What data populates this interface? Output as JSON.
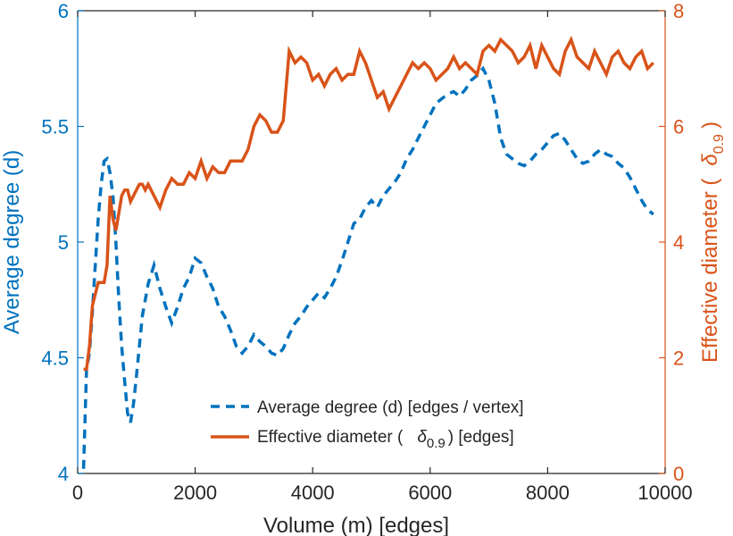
{
  "chart_data": {
    "type": "line",
    "title": "",
    "xlabel": "Volume (m) [edges]",
    "ylabel_left": "Average degree (d)",
    "ylabel_right_parts": [
      "Effective diameter (",
      "δ",
      "0.9",
      ")"
    ],
    "xlim": [
      0,
      10000
    ],
    "ylim_left": [
      4,
      6
    ],
    "ylim_right": [
      0,
      8
    ],
    "xticks": [
      0,
      2000,
      4000,
      6000,
      8000,
      10000
    ],
    "yticks_left": [
      4,
      4.5,
      5,
      5.5,
      6
    ],
    "yticks_right": [
      0,
      2,
      4,
      6,
      8
    ],
    "ytick_labels_left": [
      "4",
      "4.5",
      "5",
      "5.5",
      "6"
    ],
    "grid": false,
    "legend_position": "bottom-right",
    "colors": {
      "left_axis": "#0072BD",
      "right_axis": "#D95319",
      "axis_black": "#262626"
    },
    "series": [
      {
        "name": "Average degree (d) [edges / vertex]",
        "legend_label": "Average degree (d) [edges / vertex]",
        "axis": "left",
        "style": "dashed",
        "color": "#0072BD",
        "x": [
          100,
          150,
          200,
          250,
          300,
          350,
          400,
          450,
          500,
          550,
          600,
          650,
          700,
          750,
          800,
          850,
          900,
          950,
          1000,
          1050,
          1100,
          1150,
          1200,
          1300,
          1400,
          1500,
          1600,
          1700,
          1800,
          1900,
          2000,
          2100,
          2200,
          2300,
          2400,
          2500,
          2600,
          2700,
          2800,
          2900,
          3000,
          3100,
          3200,
          3300,
          3400,
          3500,
          3600,
          3700,
          3800,
          3900,
          4000,
          4100,
          4200,
          4300,
          4400,
          4500,
          4600,
          4700,
          4800,
          4900,
          5000,
          5100,
          5200,
          5300,
          5400,
          5500,
          5600,
          5700,
          5800,
          5900,
          6000,
          6100,
          6200,
          6300,
          6400,
          6500,
          6600,
          6700,
          6800,
          6900,
          7000,
          7100,
          7200,
          7300,
          7400,
          7500,
          7600,
          7700,
          7800,
          7900,
          8000,
          8100,
          8200,
          8300,
          8400,
          8500,
          8600,
          8700,
          8800,
          8900,
          9000,
          9100,
          9200,
          9300,
          9400,
          9500,
          9600,
          9700,
          9800
        ],
        "values": [
          4.02,
          4.45,
          4.52,
          4.7,
          4.9,
          5.1,
          5.25,
          5.35,
          5.36,
          5.3,
          5.2,
          5.0,
          4.75,
          4.55,
          4.4,
          4.26,
          4.22,
          4.3,
          4.42,
          4.55,
          4.68,
          4.75,
          4.82,
          4.9,
          4.8,
          4.72,
          4.65,
          4.72,
          4.8,
          4.85,
          4.93,
          4.91,
          4.85,
          4.8,
          4.72,
          4.68,
          4.62,
          4.55,
          4.52,
          4.55,
          4.6,
          4.57,
          4.55,
          4.52,
          4.51,
          4.54,
          4.6,
          4.65,
          4.68,
          4.72,
          4.75,
          4.78,
          4.76,
          4.8,
          4.85,
          4.92,
          5.0,
          5.08,
          5.1,
          5.15,
          5.18,
          5.15,
          5.2,
          5.23,
          5.26,
          5.3,
          5.36,
          5.4,
          5.45,
          5.5,
          5.55,
          5.6,
          5.62,
          5.64,
          5.65,
          5.63,
          5.66,
          5.7,
          5.72,
          5.75,
          5.7,
          5.6,
          5.45,
          5.38,
          5.36,
          5.34,
          5.33,
          5.35,
          5.38,
          5.4,
          5.43,
          5.46,
          5.47,
          5.44,
          5.4,
          5.36,
          5.34,
          5.35,
          5.38,
          5.4,
          5.38,
          5.37,
          5.34,
          5.32,
          5.28,
          5.23,
          5.18,
          5.14,
          5.12
        ],
        "yaxis_range": [
          4,
          6
        ]
      },
      {
        "name": "Effective diameter (δ0.9) [edges]",
        "legend_label_parts": [
          "Effective diameter (",
          "δ",
          "0.9",
          ") [edges]"
        ],
        "axis": "right",
        "style": "solid",
        "color": "#D95319",
        "x": [
          100,
          150,
          200,
          250,
          300,
          350,
          400,
          450,
          500,
          550,
          600,
          650,
          700,
          750,
          800,
          850,
          900,
          950,
          1000,
          1050,
          1100,
          1150,
          1200,
          1300,
          1400,
          1500,
          1600,
          1700,
          1800,
          1900,
          2000,
          2100,
          2200,
          2300,
          2400,
          2500,
          2600,
          2700,
          2800,
          2900,
          3000,
          3100,
          3200,
          3300,
          3400,
          3500,
          3600,
          3700,
          3800,
          3900,
          4000,
          4100,
          4200,
          4300,
          4400,
          4500,
          4600,
          4700,
          4800,
          4900,
          5000,
          5100,
          5200,
          5300,
          5400,
          5500,
          5600,
          5700,
          5800,
          5900,
          6000,
          6100,
          6200,
          6300,
          6400,
          6500,
          6600,
          6700,
          6800,
          6900,
          7000,
          7100,
          7200,
          7300,
          7400,
          7500,
          7600,
          7700,
          7800,
          7900,
          8000,
          8100,
          8200,
          8300,
          8400,
          8500,
          8600,
          8700,
          8800,
          8900,
          9000,
          9100,
          9200,
          9300,
          9400,
          9500,
          9600,
          9700,
          9800
        ],
        "values": [
          1.8,
          1.8,
          2.2,
          2.9,
          3.1,
          3.3,
          3.3,
          3.3,
          3.6,
          4.8,
          4.4,
          4.2,
          4.5,
          4.8,
          4.9,
          4.9,
          4.7,
          4.8,
          4.9,
          5.0,
          5.0,
          4.9,
          5.0,
          4.8,
          4.6,
          4.9,
          5.1,
          5.0,
          5.0,
          5.2,
          5.1,
          5.4,
          5.1,
          5.3,
          5.2,
          5.2,
          5.4,
          5.4,
          5.4,
          5.6,
          6.0,
          6.2,
          6.1,
          5.9,
          5.9,
          6.1,
          7.3,
          7.1,
          7.2,
          7.1,
          6.8,
          6.9,
          6.7,
          6.9,
          7.0,
          6.8,
          6.9,
          6.9,
          7.3,
          7.1,
          6.8,
          6.5,
          6.6,
          6.3,
          6.5,
          6.7,
          6.9,
          7.1,
          7.0,
          7.1,
          7.0,
          6.8,
          6.9,
          7.0,
          7.2,
          7.0,
          7.1,
          7.0,
          6.9,
          7.3,
          7.4,
          7.3,
          7.5,
          7.4,
          7.3,
          7.1,
          7.2,
          7.4,
          7.0,
          7.4,
          7.2,
          7.0,
          6.9,
          7.3,
          7.5,
          7.2,
          7.1,
          7.0,
          7.3,
          7.1,
          6.9,
          7.2,
          7.3,
          7.1,
          7.0,
          7.2,
          7.3,
          7.0,
          7.1
        ],
        "yaxis_range": [
          0,
          8
        ]
      }
    ]
  }
}
